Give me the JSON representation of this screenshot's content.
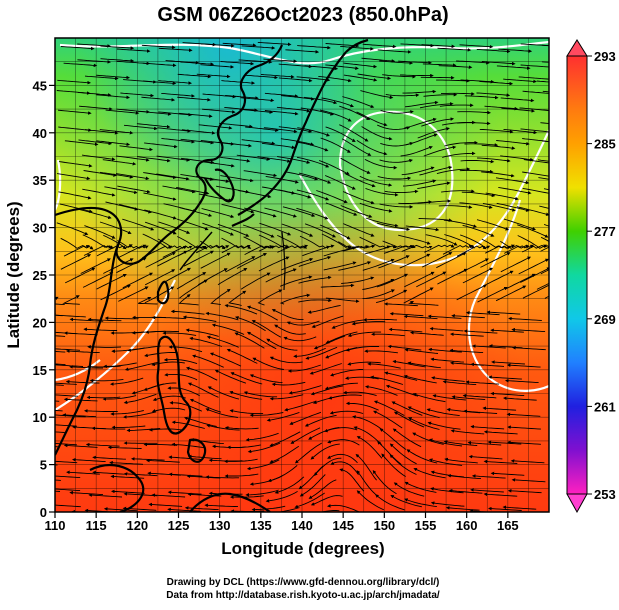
{
  "title": "GSM 06Z26Oct2023 (850.0hPa)",
  "xlabel": "Longitude (degrees)",
  "ylabel": "Latitude  (degrees)",
  "x_ticks": [
    "110",
    "115",
    "120",
    "125",
    "130",
    "135",
    "140",
    "145",
    "150",
    "155",
    "160",
    "165"
  ],
  "y_ticks": [
    "0",
    "5",
    "10",
    "15",
    "20",
    "25",
    "30",
    "35",
    "40",
    "45"
  ],
  "colorbar": {
    "labels": [
      "293",
      "285",
      "277",
      "269",
      "261",
      "253"
    ],
    "colors": [
      "#ff3030",
      "#ff9a00",
      "#ffe000",
      "#40d000",
      "#00d0c0",
      "#1fa0ff",
      "#2020ff",
      "#6000c0",
      "#ff20c0"
    ]
  },
  "credits": {
    "line1": "Drawing by DCL (https://www.gfd-dennou.org/library/dcl/)",
    "line2": "Data from http://database.rish.kyoto-u.ac.jp/arch/jmadata/"
  }
}
